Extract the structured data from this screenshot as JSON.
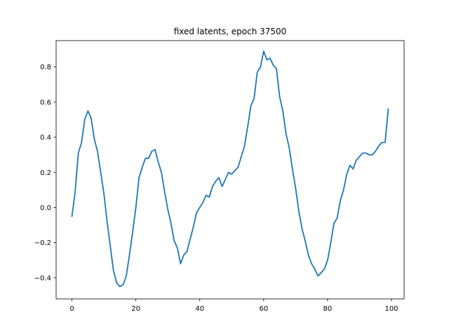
{
  "chart_data": {
    "type": "line",
    "title": "fixed latents, epoch 37500",
    "xlabel": "",
    "ylabel": "",
    "xlim": [
      -4.95,
      103.95
    ],
    "ylim": [
      -0.52,
      0.95
    ],
    "xticks": [
      0,
      20,
      40,
      60,
      80,
      100
    ],
    "yticks": [
      -0.4,
      -0.2,
      0.0,
      0.2,
      0.4,
      0.6,
      0.8
    ],
    "ytick_labels": [
      "−0.4",
      "−0.2",
      "0.0",
      "0.2",
      "0.4",
      "0.6",
      "0.8"
    ],
    "grid": false,
    "series_color": "#1f77b4",
    "x": [
      0,
      1,
      2,
      3,
      4,
      5,
      6,
      7,
      8,
      9,
      10,
      11,
      12,
      13,
      14,
      15,
      16,
      17,
      18,
      19,
      20,
      21,
      22,
      23,
      24,
      25,
      26,
      27,
      28,
      29,
      30,
      31,
      32,
      33,
      34,
      35,
      36,
      37,
      38,
      39,
      40,
      41,
      42,
      43,
      44,
      45,
      46,
      47,
      48,
      49,
      50,
      51,
      52,
      53,
      54,
      55,
      56,
      57,
      58,
      59,
      60,
      61,
      62,
      63,
      64,
      65,
      66,
      67,
      68,
      69,
      70,
      71,
      72,
      73,
      74,
      75,
      76,
      77,
      78,
      79,
      80,
      81,
      82,
      83,
      84,
      85,
      86,
      87,
      88,
      89,
      90,
      91,
      92,
      93,
      94,
      95,
      96,
      97,
      98,
      99
    ],
    "y": [
      -0.05,
      0.09,
      0.31,
      0.37,
      0.5,
      0.55,
      0.51,
      0.39,
      0.32,
      0.2,
      0.08,
      -0.08,
      -0.22,
      -0.36,
      -0.43,
      -0.45,
      -0.44,
      -0.39,
      -0.27,
      -0.14,
      0.0,
      0.17,
      0.23,
      0.28,
      0.28,
      0.32,
      0.33,
      0.26,
      0.2,
      0.09,
      -0.01,
      -0.09,
      -0.19,
      -0.23,
      -0.32,
      -0.27,
      -0.25,
      -0.18,
      -0.11,
      -0.03,
      0.0,
      0.03,
      0.07,
      0.06,
      0.12,
      0.15,
      0.17,
      0.12,
      0.16,
      0.2,
      0.19,
      0.21,
      0.23,
      0.29,
      0.35,
      0.46,
      0.58,
      0.62,
      0.77,
      0.8,
      0.89,
      0.84,
      0.85,
      0.81,
      0.79,
      0.63,
      0.55,
      0.42,
      0.34,
      0.22,
      0.11,
      -0.02,
      -0.12,
      -0.19,
      -0.27,
      -0.32,
      -0.35,
      -0.39,
      -0.37,
      -0.35,
      -0.3,
      -0.2,
      -0.09,
      -0.06,
      0.04,
      0.1,
      0.19,
      0.24,
      0.22,
      0.27,
      0.29,
      0.31,
      0.31,
      0.3,
      0.3,
      0.32,
      0.35,
      0.37,
      0.37,
      0.56
    ]
  }
}
